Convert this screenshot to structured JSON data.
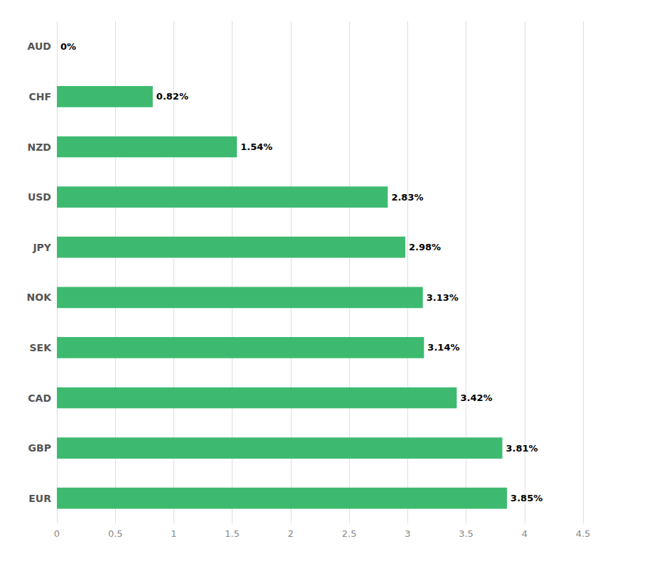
{
  "chart_data": {
    "type": "bar",
    "orientation": "horizontal",
    "categories": [
      "EUR",
      "GBP",
      "CAD",
      "SEK",
      "NOK",
      "JPY",
      "USD",
      "NZD",
      "CHF",
      "AUD"
    ],
    "values": [
      3.85,
      3.81,
      3.42,
      3.14,
      3.13,
      2.98,
      2.83,
      1.54,
      0.82,
      0.0
    ],
    "value_labels": [
      "3.85%",
      "3.81%",
      "3.42%",
      "3.14%",
      "3.13%",
      "2.98%",
      "2.83%",
      "1.54%",
      "0.82%",
      "0%"
    ],
    "data_labels": true,
    "color": "#3dba6f",
    "xlim": [
      0,
      4.5
    ],
    "xticks": [
      0,
      0.5,
      1,
      1.5,
      2,
      2.5,
      3,
      3.5,
      4,
      4.5
    ],
    "grid": true
  }
}
